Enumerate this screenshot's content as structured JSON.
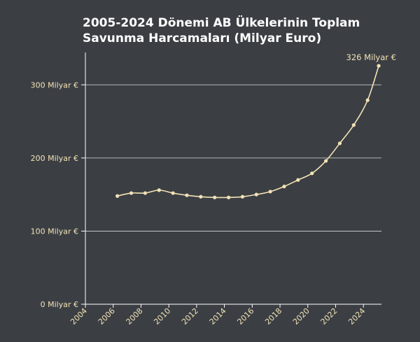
{
  "chart_data": {
    "type": "line",
    "title": "2005-2024 Dönemi AB Ülkelerinin Toplam Savunma Harcamaları (Milyar Euro)",
    "xlabel": "",
    "ylabel": "",
    "x": [
      2006.3,
      2007.3,
      2008.3,
      2009.3,
      2010.3,
      2011.3,
      2012.3,
      2013.3,
      2014.3,
      2015.3,
      2016.3,
      2017.3,
      2018.3,
      2019.3,
      2020.3,
      2021.3,
      2022.3,
      2023.3,
      2024.3,
      2025.1
    ],
    "values": [
      148,
      152,
      152,
      156,
      152,
      149,
      147,
      146,
      146,
      147,
      150,
      154,
      161,
      170,
      179,
      196,
      220,
      245,
      279,
      326
    ],
    "xlim": [
      2004,
      2025.3
    ],
    "ylim": [
      0,
      350
    ],
    "x_ticks": [
      "2004",
      "2006",
      "2008",
      "2010",
      "2012",
      "2014",
      "2016",
      "2018",
      "2020",
      "2022",
      "2024"
    ],
    "y_ticks": [
      {
        "value": 0,
        "label": "0 Milyar €"
      },
      {
        "value": 100,
        "label": "100 Milyar €"
      },
      {
        "value": 200,
        "label": "200 Milyar €"
      },
      {
        "value": 300,
        "label": "300 Milyar €"
      }
    ],
    "annotation": "326 Milyar €",
    "grid": "horizontal",
    "colors": {
      "background": "#3b3f44",
      "line": "#f2e2b5",
      "text": "#f2e2b5",
      "grid": "#d9d9d9",
      "axis": "#ffffff"
    }
  }
}
